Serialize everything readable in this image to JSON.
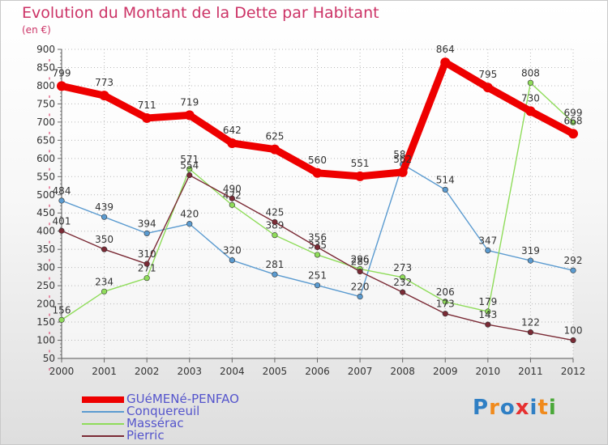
{
  "title": "Evolution du Montant de la Dette par Habitant",
  "subtitle": "(en €)",
  "brand": {
    "text": "Proxiti",
    "colors": [
      "#2f7fc4",
      "#f08a1c",
      "#2f7fc4",
      "#e63030",
      "#2f7fc4",
      "#f08a1c",
      "#4aa838"
    ]
  },
  "chart_data": {
    "type": "line",
    "x": [
      2000,
      2001,
      2002,
      2003,
      2004,
      2005,
      2006,
      2007,
      2008,
      2009,
      2010,
      2011,
      2012
    ],
    "ylim": [
      50,
      900
    ],
    "yticks": [
      50,
      100,
      150,
      200,
      250,
      300,
      350,
      400,
      450,
      500,
      550,
      600,
      650,
      700,
      750,
      800,
      850,
      900
    ],
    "grid": true,
    "legend_position": "bottom-left",
    "series": [
      {
        "name": "Conquereuil",
        "color": "#5b9bd0",
        "values": [
          484,
          439,
          394,
          420,
          320,
          281,
          251,
          220,
          584,
          514,
          347,
          319,
          292
        ]
      },
      {
        "name": "Massérac",
        "color": "#8fdc5a",
        "values": [
          156,
          234,
          271,
          571,
          472,
          389,
          335,
          296,
          273,
          206,
          179,
          808,
          699
        ]
      },
      {
        "name": "Pierric",
        "color": "#7a2a35",
        "values": [
          401,
          350,
          310,
          554,
          490,
          425,
          356,
          289,
          232,
          173,
          143,
          122,
          100
        ]
      },
      {
        "name": "GUéMENé-PENFAO",
        "color": "#ee0000",
        "values": [
          799,
          773,
          711,
          719,
          642,
          625,
          560,
          551,
          562,
          864,
          795,
          730,
          668
        ]
      }
    ],
    "legend_order": [
      "GUéMENé-PENFAO",
      "Conquereuil",
      "Massérac",
      "Pierric"
    ]
  }
}
